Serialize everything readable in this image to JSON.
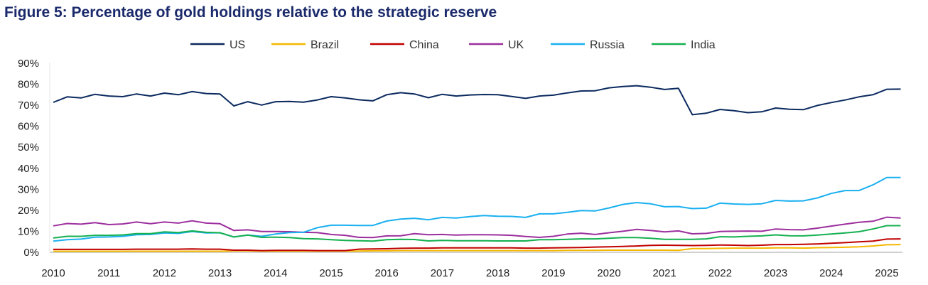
{
  "chart_data": {
    "type": "line",
    "title": "Figure 5: Percentage of gold holdings relative to the strategic reserve",
    "xlabel": "",
    "ylabel": "",
    "ylim": [
      0,
      90
    ],
    "xlim": [
      2010,
      2025.25
    ],
    "y_ticks": [
      "0%",
      "10%",
      "20%",
      "30%",
      "40%",
      "50%",
      "60%",
      "70%",
      "80%",
      "90%"
    ],
    "x_ticks": [
      "2010",
      "2011",
      "2012",
      "2013",
      "2014",
      "2015",
      "2016",
      "2017",
      "2018",
      "2019",
      "2020",
      "2021",
      "2022",
      "2023",
      "2024",
      "2025"
    ],
    "grid": false,
    "legend_position": "top",
    "x": [
      2010,
      2010.25,
      2010.5,
      2010.75,
      2011,
      2011.25,
      2011.5,
      2011.75,
      2012,
      2012.25,
      2012.5,
      2012.75,
      2013,
      2013.25,
      2013.5,
      2013.75,
      2014,
      2014.25,
      2014.5,
      2014.75,
      2015,
      2015.25,
      2015.5,
      2015.75,
      2016,
      2016.25,
      2016.5,
      2016.75,
      2017,
      2017.25,
      2017.5,
      2017.75,
      2018,
      2018.25,
      2018.5,
      2018.75,
      2019,
      2019.25,
      2019.5,
      2019.75,
      2020,
      2020.25,
      2020.5,
      2020.75,
      2021,
      2021.25,
      2021.5,
      2021.75,
      2022,
      2022.25,
      2022.5,
      2022.75,
      2023,
      2023.25,
      2023.5,
      2023.75,
      2024,
      2024.25,
      2024.5,
      2024.75,
      2025,
      2025.25
    ],
    "series": [
      {
        "name": "US",
        "color": "#0b2a5f",
        "values": [
          71.4,
          74.0,
          73.5,
          75.2,
          74.4,
          74.1,
          75.4,
          74.4,
          75.8,
          75.0,
          76.5,
          75.6,
          75.4,
          69.7,
          71.7,
          70.1,
          71.7,
          71.8,
          71.5,
          72.5,
          74.1,
          73.5,
          72.6,
          72.1,
          75.0,
          76.0,
          75.4,
          73.6,
          75.2,
          74.4,
          74.9,
          75.1,
          75.0,
          74.2,
          73.3,
          74.4,
          74.8,
          75.9,
          76.8,
          76.9,
          78.3,
          78.9,
          79.3,
          78.6,
          77.5,
          78.1,
          65.5,
          66.2,
          68.0,
          67.4,
          66.5,
          66.9,
          68.7,
          68.1,
          67.9,
          69.9,
          71.3,
          72.5,
          74.0,
          75.0,
          77.6,
          77.7
        ]
      },
      {
        "name": "Brazil",
        "color": "#f5b800",
        "values": [
          0.5,
          0.5,
          0.5,
          0.5,
          0.5,
          0.5,
          0.5,
          0.5,
          0.5,
          0.5,
          0.5,
          0.5,
          0.5,
          0.7,
          0.7,
          0.6,
          0.6,
          0.6,
          0.6,
          0.6,
          0.6,
          0.6,
          0.6,
          0.7,
          0.7,
          0.8,
          0.8,
          0.8,
          0.8,
          0.8,
          0.8,
          0.8,
          0.8,
          0.8,
          0.8,
          0.8,
          0.8,
          0.9,
          0.9,
          0.9,
          1.0,
          1.0,
          1.0,
          1.0,
          1.0,
          0.9,
          1.8,
          1.8,
          1.9,
          2.0,
          2.0,
          2.0,
          2.1,
          2.1,
          2.0,
          2.2,
          2.3,
          2.4,
          2.6,
          3.0,
          3.6,
          3.7
        ]
      },
      {
        "name": "China",
        "color": "#c00000",
        "values": [
          1.4,
          1.4,
          1.4,
          1.4,
          1.4,
          1.4,
          1.5,
          1.5,
          1.5,
          1.5,
          1.6,
          1.5,
          1.5,
          1.0,
          1.0,
          0.8,
          0.9,
          0.9,
          0.9,
          0.8,
          0.8,
          0.8,
          1.5,
          1.6,
          1.7,
          1.9,
          2.0,
          2.0,
          2.1,
          2.1,
          2.1,
          2.1,
          2.1,
          2.1,
          2.0,
          2.0,
          2.1,
          2.2,
          2.3,
          2.5,
          2.6,
          2.8,
          3.0,
          3.3,
          3.4,
          3.3,
          3.2,
          3.3,
          3.5,
          3.4,
          3.2,
          3.4,
          3.7,
          3.7,
          3.8,
          4.0,
          4.3,
          4.6,
          5.0,
          5.3,
          6.3,
          6.4
        ]
      },
      {
        "name": "UK",
        "color": "#9c2f9e",
        "values": [
          12.6,
          13.7,
          13.4,
          14.1,
          13.2,
          13.5,
          14.4,
          13.6,
          14.4,
          13.9,
          15.0,
          13.9,
          13.6,
          10.4,
          10.7,
          9.9,
          9.9,
          9.8,
          9.5,
          9.4,
          8.5,
          8.1,
          7.1,
          7.0,
          7.8,
          7.9,
          8.9,
          8.4,
          8.5,
          8.2,
          8.4,
          8.4,
          8.3,
          8.1,
          7.5,
          7.1,
          7.6,
          8.7,
          9.1,
          8.5,
          9.3,
          10.0,
          10.9,
          10.4,
          9.7,
          10.2,
          8.8,
          9.0,
          9.9,
          10.0,
          10.1,
          10.0,
          11.1,
          10.8,
          10.7,
          11.5,
          12.5,
          13.4,
          14.3,
          14.8,
          16.7,
          16.3
        ]
      },
      {
        "name": "Russia",
        "color": "#1ab0f0",
        "values": [
          5.3,
          6.0,
          6.3,
          7.2,
          7.3,
          7.6,
          8.4,
          8.5,
          9.2,
          9.0,
          9.9,
          9.2,
          9.3,
          7.3,
          8.2,
          7.6,
          8.7,
          9.4,
          9.5,
          11.7,
          12.9,
          12.9,
          12.8,
          12.8,
          14.9,
          15.8,
          16.2,
          15.5,
          16.6,
          16.3,
          17.0,
          17.5,
          17.2,
          17.1,
          16.6,
          18.3,
          18.3,
          19.0,
          19.9,
          19.7,
          21.1,
          22.8,
          23.7,
          23.1,
          21.7,
          21.8,
          20.8,
          21.0,
          23.4,
          23.0,
          22.8,
          23.1,
          24.7,
          24.4,
          24.5,
          25.9,
          28.0,
          29.4,
          29.4,
          32.1,
          35.6,
          35.6
        ]
      },
      {
        "name": "India",
        "color": "#14b050",
        "values": [
          6.8,
          7.6,
          7.6,
          8.1,
          8.1,
          8.3,
          8.9,
          8.9,
          9.7,
          9.4,
          10.2,
          9.5,
          9.3,
          7.3,
          8.2,
          7.1,
          7.2,
          7.0,
          6.5,
          6.4,
          6.0,
          5.7,
          5.5,
          5.3,
          6.0,
          6.2,
          6.1,
          5.4,
          5.7,
          5.5,
          5.5,
          5.5,
          5.4,
          5.4,
          5.4,
          6.0,
          6.0,
          6.2,
          6.4,
          6.4,
          6.7,
          7.0,
          7.0,
          6.7,
          6.2,
          6.2,
          6.2,
          6.4,
          7.4,
          7.3,
          7.6,
          7.8,
          8.3,
          7.9,
          7.8,
          8.2,
          8.7,
          9.2,
          9.8,
          11.1,
          12.7,
          12.7
        ]
      }
    ]
  }
}
